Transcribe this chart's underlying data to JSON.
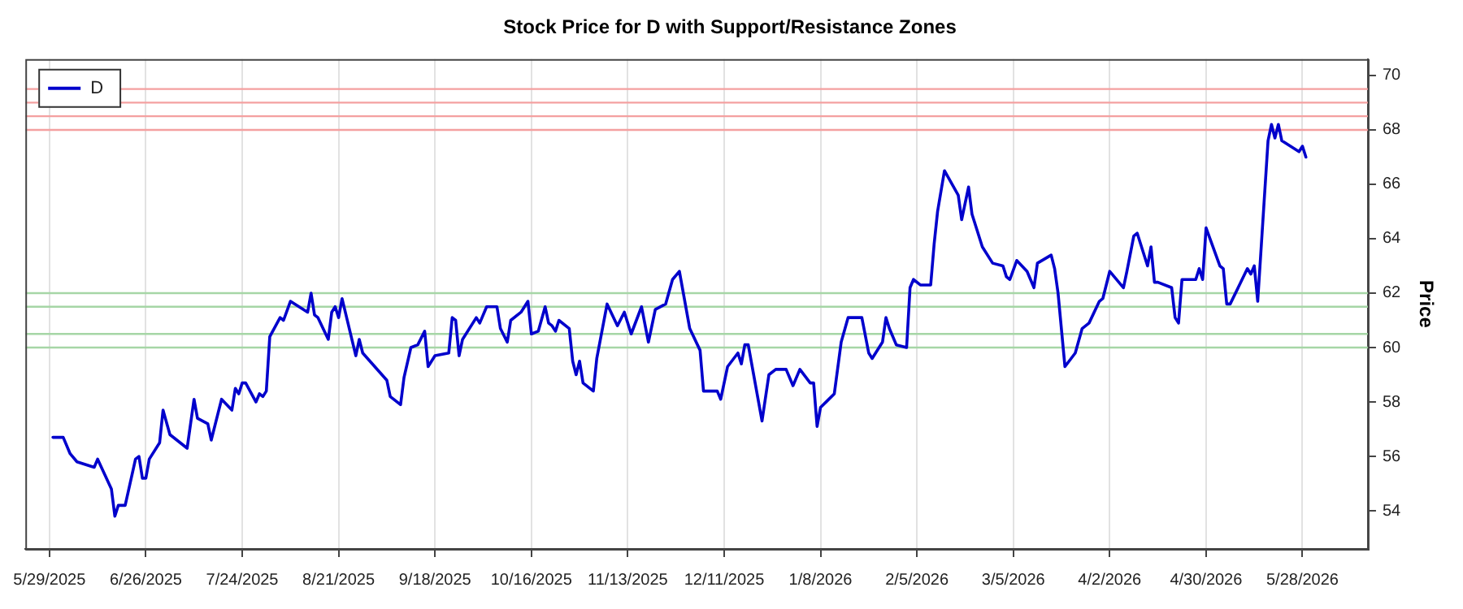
{
  "chart_data": {
    "type": "line",
    "title": "Stock Price for D with Support/Resistance Zones",
    "ylabel": "Price",
    "xlim": [
      "2025-05-22",
      "2026-06-16"
    ],
    "xticks": [
      {
        "value": "2025-05-29",
        "label": "5/29/2025"
      },
      {
        "value": "2025-06-26",
        "label": "6/26/2025"
      },
      {
        "value": "2025-07-24",
        "label": "7/24/2025"
      },
      {
        "value": "2025-08-21",
        "label": "8/21/2025"
      },
      {
        "value": "2025-09-18",
        "label": "9/18/2025"
      },
      {
        "value": "2025-10-16",
        "label": "10/16/2025"
      },
      {
        "value": "2025-11-13",
        "label": "11/13/2025"
      },
      {
        "value": "2025-12-11",
        "label": "12/11/2025"
      },
      {
        "value": "2026-01-08",
        "label": "1/8/2026"
      },
      {
        "value": "2026-02-05",
        "label": "2/5/2026"
      },
      {
        "value": "2026-03-05",
        "label": "3/5/2026"
      },
      {
        "value": "2026-04-02",
        "label": "4/2/2026"
      },
      {
        "value": "2026-04-30",
        "label": "4/30/2026"
      },
      {
        "value": "2026-05-28",
        "label": "5/28/2026"
      }
    ],
    "ylim": [
      52.6,
      70.6
    ],
    "yticks": [
      54,
      56,
      58,
      60,
      62,
      64,
      66,
      68,
      70
    ],
    "grid": "x",
    "legend": "top left",
    "marker": "none",
    "line_style": "solid",
    "x": [
      "2025-05-30",
      "2025-06-02",
      "2025-06-04",
      "2025-06-06",
      "2025-06-11",
      "2025-06-12",
      "2025-06-16",
      "2025-06-17",
      "2025-06-18",
      "2025-06-20",
      "2025-06-23",
      "2025-06-24",
      "2025-06-25",
      "2025-06-26",
      "2025-06-27",
      "2025-06-30",
      "2025-07-01",
      "2025-07-03",
      "2025-07-08",
      "2025-07-10",
      "2025-07-11",
      "2025-07-14",
      "2025-07-15",
      "2025-07-18",
      "2025-07-21",
      "2025-07-22",
      "2025-07-23",
      "2025-07-24",
      "2025-07-25",
      "2025-07-28",
      "2025-07-29",
      "2025-07-30",
      "2025-07-31",
      "2025-08-01",
      "2025-08-04",
      "2025-08-05",
      "2025-08-07",
      "2025-08-12",
      "2025-08-13",
      "2025-08-14",
      "2025-08-15",
      "2025-08-18",
      "2025-08-19",
      "2025-08-20",
      "2025-08-21",
      "2025-08-22",
      "2025-08-26",
      "2025-08-27",
      "2025-08-28",
      "2025-09-04",
      "2025-09-05",
      "2025-09-08",
      "2025-09-09",
      "2025-09-11",
      "2025-09-13",
      "2025-09-15",
      "2025-09-16",
      "2025-09-18",
      "2025-09-22",
      "2025-09-23",
      "2025-09-24",
      "2025-09-25",
      "2025-09-26",
      "2025-09-30",
      "2025-10-01",
      "2025-10-03",
      "2025-10-06",
      "2025-10-07",
      "2025-10-09",
      "2025-10-10",
      "2025-10-13",
      "2025-10-15",
      "2025-10-16",
      "2025-10-18",
      "2025-10-20",
      "2025-10-21",
      "2025-10-22",
      "2025-10-23",
      "2025-10-24",
      "2025-10-27",
      "2025-10-28",
      "2025-10-29",
      "2025-10-30",
      "2025-10-31",
      "2025-11-03",
      "2025-11-04",
      "2025-11-07",
      "2025-11-10",
      "2025-11-12",
      "2025-11-14",
      "2025-11-17",
      "2025-11-19",
      "2025-11-21",
      "2025-11-24",
      "2025-11-26",
      "2025-11-28",
      "2025-12-01",
      "2025-12-04",
      "2025-12-05",
      "2025-12-09",
      "2025-12-10",
      "2025-12-12",
      "2025-12-15",
      "2025-12-16",
      "2025-12-17",
      "2025-12-18",
      "2025-12-22",
      "2025-12-24",
      "2025-12-26",
      "2025-12-29",
      "2025-12-31",
      "2026-01-02",
      "2026-01-05",
      "2026-01-06",
      "2026-01-07",
      "2026-01-08",
      "2026-01-12",
      "2026-01-14",
      "2026-01-16",
      "2026-01-20",
      "2026-01-22",
      "2026-01-23",
      "2026-01-26",
      "2026-01-27",
      "2026-01-28",
      "2026-01-30",
      "2026-02-02",
      "2026-02-03",
      "2026-02-04",
      "2026-02-06",
      "2026-02-09",
      "2026-02-10",
      "2026-02-11",
      "2026-02-13",
      "2026-02-17",
      "2026-02-18",
      "2026-02-20",
      "2026-02-21",
      "2026-02-24",
      "2026-02-27",
      "2026-03-02",
      "2026-03-03",
      "2026-03-04",
      "2026-03-06",
      "2026-03-09",
      "2026-03-11",
      "2026-03-12",
      "2026-03-16",
      "2026-03-17",
      "2026-03-18",
      "2026-03-20",
      "2026-03-23",
      "2026-03-25",
      "2026-03-27",
      "2026-03-30",
      "2026-03-31",
      "2026-04-02",
      "2026-04-06",
      "2026-04-07",
      "2026-04-09",
      "2026-04-10",
      "2026-04-13",
      "2026-04-14",
      "2026-04-15",
      "2026-04-16",
      "2026-04-20",
      "2026-04-21",
      "2026-04-22",
      "2026-04-23",
      "2026-04-27",
      "2026-04-28",
      "2026-04-29",
      "2026-04-30",
      "2026-05-04",
      "2026-05-05",
      "2026-05-06",
      "2026-05-07",
      "2026-05-12",
      "2026-05-13",
      "2026-05-14",
      "2026-05-15",
      "2026-05-18",
      "2026-05-19",
      "2026-05-20",
      "2026-05-21",
      "2026-05-22",
      "2026-05-27",
      "2026-05-28",
      "2026-05-29"
    ],
    "series": [
      {
        "name": "D",
        "color": "#0000cc",
        "values": [
          56.7,
          56.7,
          56.1,
          55.8,
          55.6,
          55.9,
          54.8,
          53.8,
          54.2,
          54.2,
          55.9,
          56.0,
          55.2,
          55.2,
          55.9,
          56.5,
          57.7,
          56.8,
          56.3,
          58.1,
          57.4,
          57.2,
          56.6,
          58.1,
          57.7,
          58.5,
          58.3,
          58.7,
          58.7,
          58.0,
          58.3,
          58.2,
          58.4,
          60.4,
          61.1,
          61.0,
          61.7,
          61.3,
          62.0,
          61.2,
          61.1,
          60.3,
          61.3,
          61.5,
          61.1,
          61.8,
          59.7,
          60.3,
          59.8,
          58.8,
          58.2,
          57.9,
          58.9,
          60.0,
          60.1,
          60.6,
          59.3,
          59.7,
          59.8,
          61.1,
          61.0,
          59.7,
          60.3,
          61.1,
          60.9,
          61.5,
          61.5,
          60.7,
          60.2,
          61.0,
          61.3,
          61.7,
          60.5,
          60.6,
          61.5,
          60.9,
          60.8,
          60.6,
          61.0,
          60.7,
          59.5,
          59.0,
          59.5,
          58.7,
          58.4,
          59.6,
          61.6,
          60.8,
          61.3,
          60.5,
          61.5,
          60.2,
          61.4,
          61.6,
          62.5,
          62.8,
          60.7,
          59.9,
          58.4,
          58.4,
          58.1,
          59.3,
          59.8,
          59.4,
          60.1,
          60.1,
          57.3,
          59.0,
          59.2,
          59.2,
          58.6,
          59.2,
          58.7,
          58.7,
          57.1,
          57.8,
          58.3,
          60.2,
          61.1,
          61.1,
          59.8,
          59.6,
          60.2,
          61.1,
          60.7,
          60.1,
          60.0,
          62.2,
          62.5,
          62.3,
          62.3,
          63.8,
          65.0,
          66.5,
          65.6,
          64.7,
          65.9,
          64.9,
          63.7,
          63.1,
          63.0,
          62.6,
          62.5,
          63.2,
          62.8,
          62.2,
          63.1,
          63.4,
          62.9,
          62.0,
          59.3,
          59.8,
          60.7,
          60.9,
          61.7,
          61.8,
          62.8,
          62.2,
          62.8,
          64.1,
          64.2,
          63.0,
          63.7,
          62.4,
          62.4,
          62.2,
          61.1,
          60.9,
          62.5,
          62.5,
          62.9,
          62.5,
          64.4,
          63.0,
          62.9,
          61.6,
          61.6,
          62.9,
          62.7,
          63.0,
          61.7,
          67.6,
          68.2,
          67.7,
          68.2,
          67.6,
          67.2,
          67.4,
          67.0
        ]
      }
    ],
    "ref_lines": [
      {
        "axis": "y",
        "value": 68,
        "color": "#f4a0a0"
      },
      {
        "axis": "y",
        "value": 68.5,
        "color": "#f4a0a0"
      },
      {
        "axis": "y",
        "value": 69,
        "color": "#f4a0a0"
      },
      {
        "axis": "y",
        "value": 69.5,
        "color": "#f4a0a0"
      },
      {
        "axis": "y",
        "value": 60,
        "color": "#a6d6a6"
      },
      {
        "axis": "y",
        "value": 60.5,
        "color": "#a6d6a6"
      },
      {
        "axis": "y",
        "value": 61.5,
        "color": "#a6d6a6"
      },
      {
        "axis": "y",
        "value": 62,
        "color": "#a6d6a6"
      }
    ]
  }
}
